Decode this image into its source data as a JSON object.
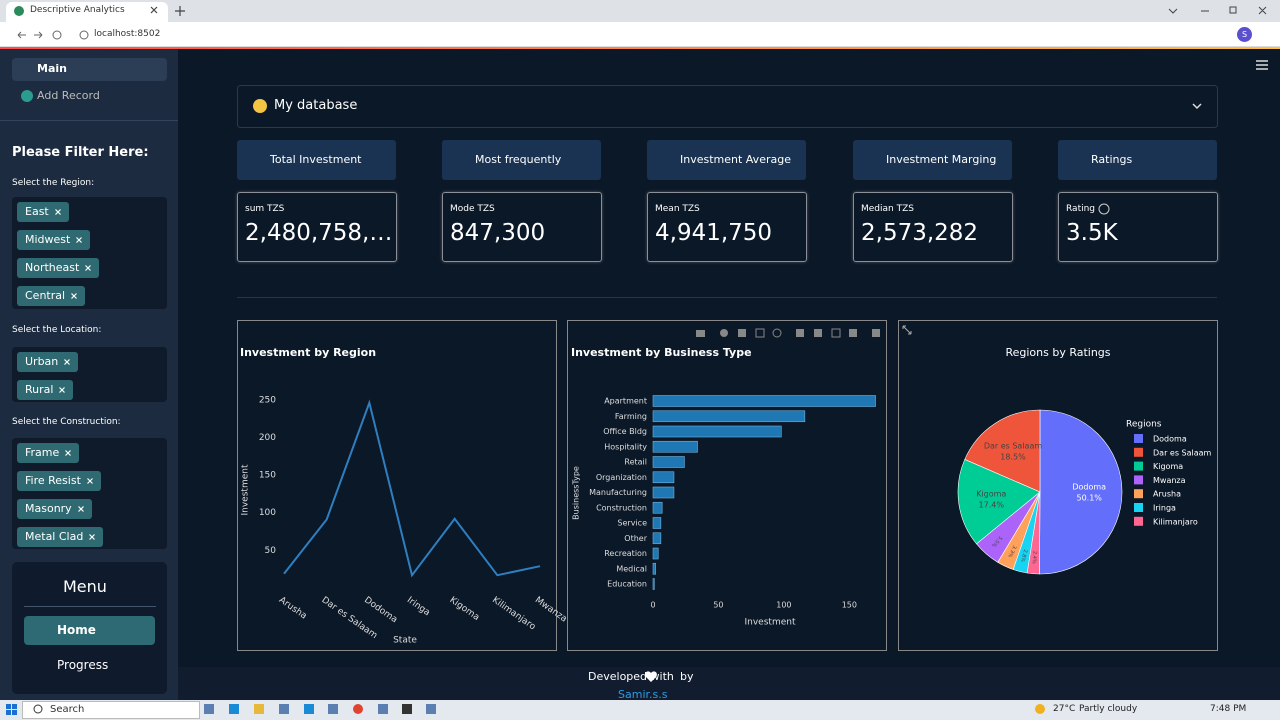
{
  "browser": {
    "tab_title": "Descriptive Analytics",
    "url": "localhost:8502",
    "profile_initial": "S"
  },
  "sidebar": {
    "nav": [
      "Main",
      "Add Record"
    ],
    "filter_title": "Please Filter Here:",
    "filters": [
      {
        "label": "Select the Region:",
        "tags": [
          "East",
          "Midwest",
          "Northeast",
          "Central"
        ]
      },
      {
        "label": "Select the Location:",
        "tags": [
          "Urban",
          "Rural"
        ]
      },
      {
        "label": "Select the Construction:",
        "tags": [
          "Frame",
          "Fire Resist",
          "Masonry",
          "Metal Clad"
        ]
      }
    ],
    "menu": {
      "title": "Menu",
      "items": [
        "Home",
        "Progress"
      ]
    }
  },
  "main": {
    "expander": "My database",
    "cards": [
      {
        "header": "Total Investment",
        "metric_label": "sum TZS",
        "metric_value": "2,480,758,…"
      },
      {
        "header": "Most frequently",
        "metric_label": "Mode TZS",
        "metric_value": "847,300"
      },
      {
        "header": "Investment Average",
        "metric_label": "Mean TZS",
        "metric_value": "4,941,750"
      },
      {
        "header": "Investment Marging",
        "metric_label": "Median TZS",
        "metric_value": "2,573,282"
      },
      {
        "header": "Ratings",
        "metric_label": "Rating",
        "metric_value": "3.5K"
      }
    ],
    "footer": {
      "text": "Developed with",
      "by": "by",
      "author": "Samir.s.s"
    }
  },
  "chart_data": [
    {
      "type": "line",
      "title": "Investment by Region",
      "x_label": "State",
      "y_label": "Investment",
      "categories": [
        "Arusha",
        "Dar es Salaam",
        "Dodoma",
        "Iringa",
        "Kigoma",
        "Kilimanjaro",
        "Mwanza"
      ],
      "values": [
        19,
        91,
        246,
        17,
        92,
        17,
        29
      ],
      "color": "#2f7fc0",
      "ylim": [
        0,
        263
      ],
      "yticks": [
        50,
        100,
        150,
        200,
        250
      ],
      "grid": false
    },
    {
      "type": "bar",
      "orientation": "horizontal",
      "title": "Investment by Business Type",
      "x_label": "Investment",
      "y_label": "BusinessType",
      "categories": [
        "Apartment",
        "Farming",
        "Office Bldg",
        "Hospitality",
        "Retail",
        "Organization",
        "Manufacturing",
        "Construction",
        "Service",
        "Other",
        "Recreation",
        "Medical",
        "Education"
      ],
      "values": [
        170,
        116,
        98,
        34,
        24,
        16,
        16,
        7,
        6,
        6,
        4,
        2,
        1
      ],
      "color": "#1f77b4",
      "xlim": [
        0,
        178
      ],
      "xticks": [
        0,
        50,
        100,
        150
      ],
      "grid": false
    },
    {
      "type": "pie",
      "title": "Regions by Ratings",
      "legend_title": "Regions",
      "legend": "right",
      "categories": [
        "Dodoma",
        "Dar es Salaam",
        "Kigoma",
        "Mwanza",
        "Arusha",
        "Iringa",
        "Kilimanjaro"
      ],
      "values": [
        50.1,
        18.5,
        17.4,
        5.5,
        3.3,
        2.8,
        2.4
      ],
      "value_labels": [
        "50.1%",
        "18.5%",
        "17.4%",
        "5.5%",
        "3.3%",
        "2.8%",
        "2.4%"
      ],
      "colors": [
        "#636efa",
        "#ef553b",
        "#00cc96",
        "#ab63fa",
        "#ffa15a",
        "#19d3f3",
        "#ff6692"
      ]
    }
  ],
  "taskbar": {
    "search": "Search",
    "temperature": "27°C",
    "weather": "Partly cloudy",
    "time": "7:48 PM"
  }
}
